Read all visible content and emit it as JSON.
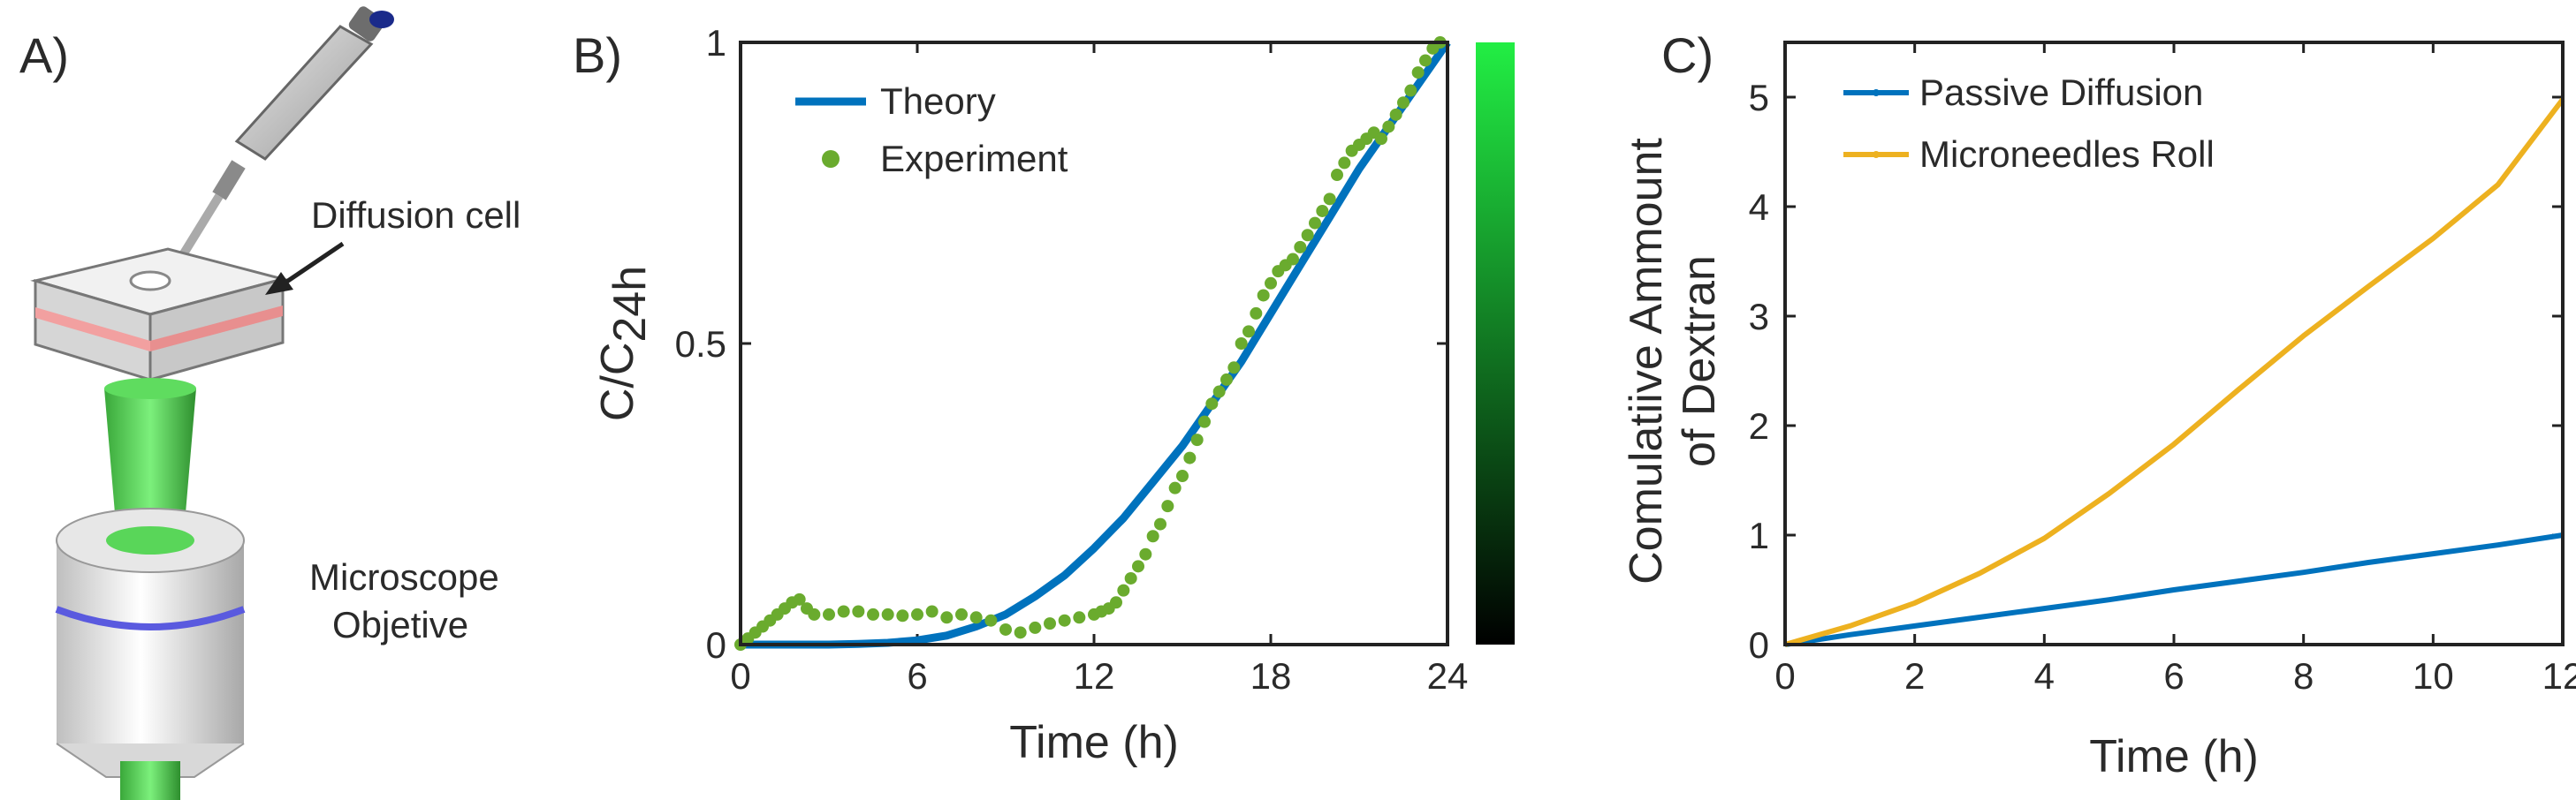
{
  "panels": {
    "a": {
      "label": "A)",
      "annotations": {
        "diffusion_cell": "Diffusion cell",
        "microscope_line1": "Microscope",
        "microscope_line2": "Objetive"
      }
    },
    "b": {
      "label": "B)"
    },
    "c": {
      "label": "C)"
    }
  },
  "colors": {
    "theory": "#0072BD",
    "experiment": "#6aab2e",
    "passive": "#0072BD",
    "microneedles": "#EDB120",
    "axis": "#222222"
  },
  "chart_data": [
    {
      "id": "B",
      "type": "line+scatter",
      "xlabel": "Time (h)",
      "ylabel": {
        "base": "C/C",
        "subscript": "24h"
      },
      "xlim": [
        0,
        24
      ],
      "ylim": [
        0,
        1
      ],
      "xticks": [
        "0",
        "6",
        "12",
        "18",
        "24"
      ],
      "yticks": [
        "0",
        "0.5",
        "1"
      ],
      "legend": {
        "position": "top-left",
        "entries": [
          "Theory",
          "Experiment"
        ]
      },
      "colorbar": {
        "from": "#000000",
        "to": "#22ee44"
      },
      "series": [
        {
          "name": "Theory",
          "kind": "line",
          "x": [
            0,
            1,
            2,
            3,
            4,
            5,
            6,
            7,
            8,
            9,
            10,
            11,
            12,
            13,
            14,
            15,
            16,
            17,
            18,
            19,
            20,
            21,
            22,
            23,
            24
          ],
          "y": [
            0,
            0,
            0,
            0,
            0.001,
            0.003,
            0.007,
            0.015,
            0.03,
            0.05,
            0.08,
            0.115,
            0.16,
            0.21,
            0.27,
            0.33,
            0.4,
            0.47,
            0.55,
            0.63,
            0.71,
            0.79,
            0.86,
            0.93,
            1.0
          ]
        },
        {
          "name": "Experiment",
          "kind": "scatter",
          "x": [
            0,
            0.25,
            0.5,
            0.75,
            1,
            1.25,
            1.5,
            1.75,
            2,
            2.25,
            2.5,
            3,
            3.5,
            4,
            4.5,
            5,
            5.5,
            6,
            6.5,
            7,
            7.5,
            8,
            8.5,
            9,
            9.5,
            10,
            10.5,
            11,
            11.5,
            12,
            12.25,
            12.5,
            12.75,
            13,
            13.25,
            13.5,
            13.75,
            14,
            14.25,
            14.5,
            14.75,
            15,
            15.25,
            15.5,
            15.75,
            16,
            16.25,
            16.5,
            16.75,
            17,
            17.25,
            17.5,
            17.75,
            18,
            18.25,
            18.5,
            18.75,
            19,
            19.25,
            19.5,
            19.75,
            20,
            20.25,
            20.5,
            20.75,
            21,
            21.25,
            21.5,
            21.75,
            22,
            22.25,
            22.5,
            22.75,
            23,
            23.25,
            23.5,
            23.75
          ],
          "y": [
            0,
            0.01,
            0.02,
            0.03,
            0.04,
            0.05,
            0.06,
            0.07,
            0.075,
            0.06,
            0.05,
            0.05,
            0.055,
            0.055,
            0.05,
            0.05,
            0.048,
            0.05,
            0.055,
            0.045,
            0.05,
            0.045,
            0.04,
            0.025,
            0.02,
            0.028,
            0.035,
            0.04,
            0.045,
            0.05,
            0.055,
            0.06,
            0.07,
            0.09,
            0.11,
            0.13,
            0.15,
            0.18,
            0.2,
            0.23,
            0.26,
            0.28,
            0.31,
            0.34,
            0.37,
            0.4,
            0.42,
            0.44,
            0.46,
            0.5,
            0.52,
            0.55,
            0.58,
            0.6,
            0.62,
            0.63,
            0.64,
            0.66,
            0.68,
            0.7,
            0.72,
            0.74,
            0.78,
            0.8,
            0.82,
            0.83,
            0.84,
            0.85,
            0.84,
            0.86,
            0.88,
            0.9,
            0.92,
            0.95,
            0.97,
            0.99,
            1.0
          ]
        }
      ]
    },
    {
      "id": "C",
      "type": "line",
      "xlabel": "Time (h)",
      "ylabel": [
        "Comulatiive Ammount",
        "of Dextran"
      ],
      "xlim": [
        0,
        12
      ],
      "ylim": [
        0,
        5.5
      ],
      "xticks": [
        "0",
        "2",
        "4",
        "6",
        "8",
        "10",
        "12"
      ],
      "yticks": [
        "0",
        "1",
        "2",
        "3",
        "4",
        "5"
      ],
      "legend": {
        "position": "top-left",
        "entries": [
          "Passive Diffusion",
          "Microneedles Roll"
        ]
      },
      "series": [
        {
          "name": "Passive Diffusion",
          "x": [
            0,
            1,
            2,
            3,
            4,
            5,
            6,
            7,
            8,
            9,
            10,
            11,
            12
          ],
          "y": [
            0,
            0.09,
            0.17,
            0.25,
            0.33,
            0.41,
            0.5,
            0.58,
            0.66,
            0.75,
            0.83,
            0.91,
            1.0
          ]
        },
        {
          "name": "Microneedles Roll",
          "x": [
            0,
            1,
            2,
            3,
            4,
            5,
            6,
            7,
            8,
            9,
            10,
            11,
            12
          ],
          "y": [
            0,
            0.17,
            0.38,
            0.65,
            0.97,
            1.38,
            1.83,
            2.33,
            2.82,
            3.27,
            3.71,
            4.2,
            4.98
          ]
        }
      ]
    }
  ]
}
